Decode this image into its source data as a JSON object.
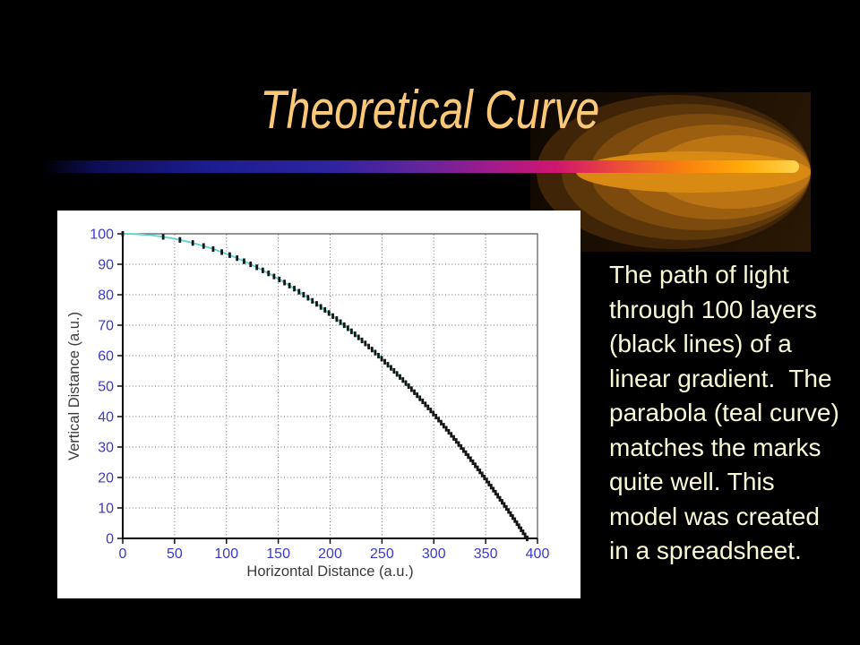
{
  "slide": {
    "title": "Theoretical Curve",
    "body_lines": [
      "The path of light",
      "through 100 layers",
      "(black lines) of a",
      "linear gradient.  The",
      "parabola (teal curve)",
      "matches the marks",
      "quite well. This",
      "model was created",
      "in a spreadsheet."
    ],
    "body_text": "The path of light through 100 layers (black lines) of a linear gradient.  The parabola (teal curve) matches the marks quite well. This model was created in a spreadsheet.",
    "colors": {
      "background": "#000000",
      "title_text": "#FBC878",
      "body_text": "#FBF9D5",
      "bar_gradient": [
        "#0D0D52",
        "#1C1C90",
        "#62259B",
        "#A51A8C",
        "#D1156E",
        "#F9820D",
        "#FFAD08",
        "#FFD54F"
      ],
      "ellipse_bands": [
        "#3F2407",
        "#5C370A",
        "#7B4A0C",
        "#9C5F10",
        "#BA7413",
        "#D88A12"
      ]
    }
  },
  "chart_data": {
    "type": "line",
    "title": "",
    "xlabel": "Horizontal Distance (a.u.)",
    "ylabel": "Vertical Distance (a.u.)",
    "xlim": [
      0,
      400
    ],
    "ylim": [
      0,
      100
    ],
    "xticks": [
      0,
      50,
      100,
      150,
      200,
      250,
      300,
      350,
      400
    ],
    "yticks": [
      0,
      10,
      20,
      30,
      40,
      50,
      60,
      70,
      80,
      90,
      100
    ],
    "grid": true,
    "grid_style": "dotted",
    "background": "#FFFFFF",
    "tick_label_color": "#3939CC",
    "axis_label_color": "#3A3A3A",
    "series": [
      {
        "name": "parabola (theoretical curve)",
        "type": "line",
        "color": "#5AD5D0",
        "equation": "y = 100 * (1 - (x/390)^2)",
        "x_start": 0,
        "x_end": 390,
        "points_sample": [
          [
            0,
            100
          ],
          [
            123,
            90
          ],
          [
            174,
            80
          ],
          [
            214,
            70
          ],
          [
            247,
            60
          ],
          [
            276,
            50
          ],
          [
            302,
            40
          ],
          [
            326,
            30
          ],
          [
            349,
            20
          ],
          [
            370,
            10
          ],
          [
            390,
            0
          ]
        ]
      },
      {
        "name": "layer marks (light path through 100 layers)",
        "type": "tick-marks",
        "color": "#151515",
        "count": 101,
        "rule": "x = 390*sqrt(k/100), y = 100 - k, for k = 0..100"
      }
    ]
  }
}
